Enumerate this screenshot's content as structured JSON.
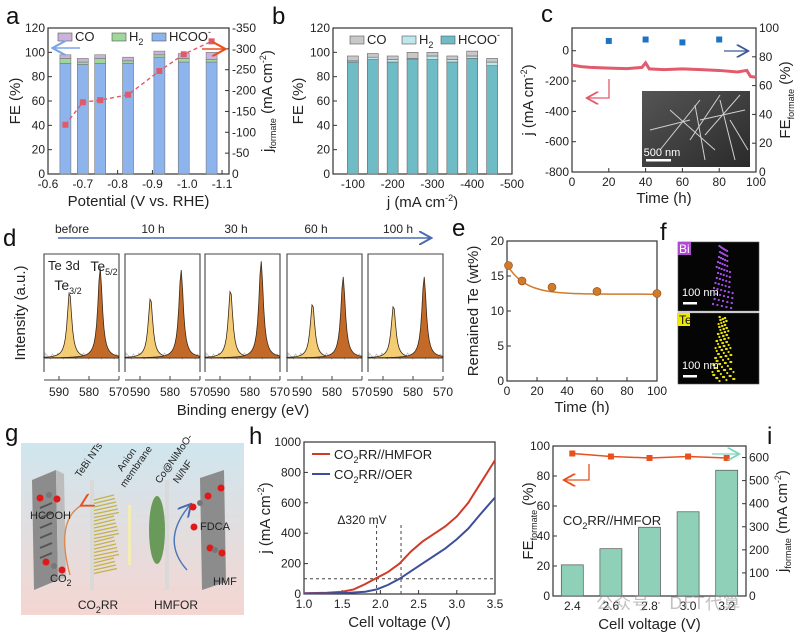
{
  "figure": {
    "watermark": "公众号 · DFT代算",
    "panels_letters": [
      "a",
      "b",
      "c",
      "d",
      "e",
      "f",
      "g",
      "h",
      "i"
    ]
  },
  "chart_data": [
    {
      "id": "a",
      "type": "bar",
      "stacked": true,
      "title": "",
      "xlabel": "Potential (V vs. RHE)",
      "ylabel": "FE (%)",
      "y2label": "j_formate (mA cm-2)",
      "y2label_main": "j",
      "y2label_sub": "formate",
      "y2label_unit": " (mA cm",
      "y2label_sup": "-2",
      "x": [
        -0.65,
        -0.7,
        -0.75,
        -0.83,
        -0.92,
        -0.99,
        -1.07
      ],
      "xlim": [
        -0.6,
        -1.12
      ],
      "xticks": [
        "-0.6",
        "-0.7",
        "-0.8",
        "-0.9",
        "-1.0",
        "-1.1"
      ],
      "xtick_values": [
        -0.6,
        -0.7,
        -0.8,
        -0.9,
        -1.0,
        -1.1
      ],
      "ylim": [
        0,
        120
      ],
      "yticks": [
        "0",
        "20",
        "40",
        "60",
        "80",
        "100",
        "120"
      ],
      "y2lim": [
        0,
        -350
      ],
      "y2ticks": [
        "0",
        "-50",
        "-100",
        "-150",
        "-200",
        "-250",
        "-300",
        "-350"
      ],
      "legend": [
        "CO",
        "H2",
        "HCOO-"
      ],
      "legend_position": "top",
      "colors": {
        "CO": "#c9b3dc",
        "H2": "#9fd89a",
        "HCOO-": "#8db4ec",
        "line": "#e05a6a"
      },
      "series": [
        {
          "name": "HCOO-",
          "values": [
            91,
            90,
            91,
            91,
            96,
            92,
            92
          ]
        },
        {
          "name": "H2",
          "values": [
            4,
            2,
            4,
            2,
            2,
            3,
            2
          ]
        },
        {
          "name": "CO",
          "values": [
            3,
            3,
            3,
            3,
            3,
            4,
            6
          ]
        }
      ],
      "line_series": {
        "name": "j_formate",
        "values": [
          -118,
          -172,
          -177,
          -190,
          -247,
          -287,
          -318
        ]
      }
    },
    {
      "id": "b",
      "type": "bar",
      "stacked": true,
      "xlabel": "j (mA cm-2)",
      "xlabel_main": "j (mA cm",
      "xlabel_sup": "-2",
      "ylabel": "FE (%)",
      "x": [
        -100,
        -150,
        -200,
        -250,
        -300,
        -350,
        -400,
        -450
      ],
      "xlim": [
        -50,
        -500
      ],
      "xticks": [
        "-100",
        "-200",
        "-300",
        "-400",
        "-500"
      ],
      "xtick_values": [
        -100,
        -200,
        -300,
        -400,
        -500
      ],
      "ylim": [
        0,
        120
      ],
      "yticks": [
        "0",
        "20",
        "40",
        "60",
        "80",
        "100",
        "120"
      ],
      "legend": [
        "CO",
        "H2",
        "HCOO-"
      ],
      "legend_position": "top",
      "colors": {
        "CO": "#c8c8c8",
        "H2": "#bfe6ea",
        "HCOO-": "#6fbcc6"
      },
      "series": [
        {
          "name": "HCOO-",
          "values": [
            92,
            94,
            92,
            94,
            94,
            92,
            95,
            89
          ]
        },
        {
          "name": "H2",
          "values": [
            1,
            2,
            2,
            1,
            3,
            2,
            2,
            3
          ]
        },
        {
          "name": "CO",
          "values": [
            4,
            3,
            3,
            5,
            3,
            3,
            4,
            3
          ]
        }
      ]
    },
    {
      "id": "c",
      "type": "line",
      "xlabel": "Time (h)",
      "ylabel": "j (mA cm-2)",
      "ylabel_main": "j (mA cm",
      "ylabel_sup": "-2",
      "y2label_main": "FE",
      "y2label_sub": "formate",
      "y2label_unit": " (%)",
      "xlim": [
        0,
        100
      ],
      "xticks": [
        "0",
        "20",
        "40",
        "60",
        "80",
        "100"
      ],
      "ylim": [
        -800,
        150
      ],
      "yticks": [
        "0",
        "-200",
        "-400",
        "-600",
        "-800"
      ],
      "ytick_values": [
        0,
        -200,
        -400,
        -600,
        -800
      ],
      "y2lim": [
        0,
        100
      ],
      "y2ticks": [
        "0",
        "20",
        "40",
        "60",
        "80",
        "100"
      ],
      "colors": {
        "j": "#e25a6c",
        "fe": "#1f73c4"
      },
      "series": [
        {
          "name": "j",
          "x": [
            0,
            5,
            10,
            20,
            30,
            38,
            40,
            42,
            50,
            60,
            70,
            80,
            90,
            95,
            97,
            100
          ],
          "values": [
            -95,
            -105,
            -110,
            -115,
            -118,
            -110,
            -80,
            -120,
            -125,
            -120,
            -125,
            -130,
            -140,
            -130,
            -170,
            -175
          ]
        },
        {
          "name": "FE_formate",
          "x": [
            20,
            40,
            60,
            80
          ],
          "values": [
            91,
            92,
            90,
            92
          ]
        }
      ],
      "inset_scale_label": "500 nm"
    },
    {
      "id": "d",
      "type": "line",
      "title": "Te 3d",
      "xlabel": "Binding energy (eV)",
      "ylabel": "Intensity (a.u.)",
      "time_labels": [
        "before",
        "10 h",
        "30 h",
        "60 h",
        "100 h"
      ],
      "peak_labels": {
        "p1": "Te",
        "p1_sub": "3/2",
        "p2": "Te",
        "p2_sub": "5/2"
      },
      "xlim": [
        595,
        570
      ],
      "xticks": [
        "590",
        "580",
        "570"
      ],
      "peak_positions_eV": [
        586.5,
        576.3
      ],
      "peak_heights": [
        {
          "label": "before",
          "p32": 0.68,
          "p52": 0.92
        },
        {
          "label": "10 h",
          "p32": 0.62,
          "p52": 0.9
        },
        {
          "label": "30 h",
          "p32": 0.7,
          "p52": 0.99
        },
        {
          "label": "60 h",
          "p32": 0.56,
          "p52": 0.83
        },
        {
          "label": "100 h",
          "p32": 0.54,
          "p52": 0.83
        }
      ],
      "colors": {
        "p32": "#f4cc74",
        "p52": "#c46a28",
        "arrow": "#4a6ab0"
      }
    },
    {
      "id": "e",
      "type": "scatter",
      "xlabel": "Time (h)",
      "ylabel": "Remained Te (wt%)",
      "xlim": [
        0,
        100
      ],
      "xticks": [
        "0",
        "20",
        "40",
        "60",
        "80",
        "100"
      ],
      "ylim": [
        0,
        20
      ],
      "yticks": [
        "0",
        "5",
        "10",
        "15",
        "20"
      ],
      "x": [
        1,
        10,
        30,
        60,
        100
      ],
      "values": [
        16.5,
        14.3,
        13.4,
        12.8,
        12.5
      ],
      "colors": {
        "point": "#d07a2a"
      }
    },
    {
      "id": "f",
      "type": "image",
      "maps": [
        {
          "element": "Bi",
          "scale": "100 nm",
          "color": "#a04ce0"
        },
        {
          "element": "Te",
          "scale": "100 nm",
          "color": "#e8e000"
        }
      ]
    },
    {
      "id": "g",
      "type": "diagram",
      "labels": {
        "cathode": "TeBi NTs",
        "membrane_1": "Anion",
        "membrane_2": "membrane",
        "anode_1": "Co@NiMoO-",
        "anode_2": "Ni/NF",
        "product_left": "HCOOH",
        "reactant_left": "CO",
        "reactant_left_sub": "2",
        "product_right": "FDCA",
        "reactant_right": "HMF",
        "bottom_left": "CO",
        "bottom_left_sub": "2",
        "bottom_left_tail": "RR",
        "bottom_right": "HMFOR"
      }
    },
    {
      "id": "h",
      "type": "line",
      "xlabel": "Cell voltage (V)",
      "ylabel": "j (mA cm-2)",
      "ylabel_main": "j (mA cm",
      "ylabel_sup": "-2",
      "xlim": [
        1.0,
        3.5
      ],
      "xticks": [
        "1.0",
        "1.5",
        "2.0",
        "2.5",
        "3.0",
        "3.5"
      ],
      "ylim": [
        0,
        1000
      ],
      "yticks": [
        "0",
        "200",
        "400",
        "600",
        "800",
        "1000"
      ],
      "annotation": "Δ320 mV",
      "legend_position": "top-left",
      "series": [
        {
          "name": "CO2RR//HMFOR",
          "legend_main": "CO",
          "legend_sub": "2",
          "legend_tail": "RR//HMFOR",
          "color": "#d03a28",
          "x": [
            1.0,
            1.3,
            1.5,
            1.65,
            1.8,
            1.95,
            2.1,
            2.25,
            2.4,
            2.55,
            2.7,
            2.85,
            3.0,
            3.15,
            3.3,
            3.5
          ],
          "values": [
            5,
            8,
            15,
            30,
            65,
            105,
            145,
            200,
            280,
            345,
            395,
            445,
            510,
            600,
            720,
            880
          ]
        },
        {
          "name": "CO2RR//OER",
          "legend_main": "CO",
          "legend_sub": "2",
          "legend_tail": "RR//OER",
          "color": "#3d4f98",
          "x": [
            1.0,
            1.3,
            1.6,
            1.8,
            1.95,
            2.1,
            2.25,
            2.4,
            2.55,
            2.7,
            2.85,
            3.0,
            3.15,
            3.3,
            3.5
          ],
          "values": [
            3,
            5,
            8,
            15,
            30,
            60,
            100,
            150,
            200,
            250,
            300,
            360,
            430,
            520,
            635
          ]
        }
      ],
      "reference_lines": {
        "y": 100,
        "x": [
          1.95,
          2.27
        ]
      }
    },
    {
      "id": "i",
      "type": "bar",
      "xlabel": "Cell voltage (V)",
      "ylabel_main": "FE",
      "ylabel_sub": "formate",
      "ylabel_unit": " (%)",
      "y2label_main": "j",
      "y2label_sub": "formate",
      "y2label_unit": " (mA cm",
      "y2label_sup": "-2",
      "annotation_main": "CO",
      "annotation_sub": "2",
      "annotation_tail": "RR//HMFOR",
      "categories": [
        "2.4",
        "2.6",
        "2.8",
        "3.0",
        "3.2"
      ],
      "ylim": [
        0,
        100
      ],
      "yticks": [
        "0",
        "20",
        "40",
        "60",
        "80",
        "100"
      ],
      "y2lim": [
        0,
        650
      ],
      "y2ticks": [
        "0",
        "100",
        "200",
        "300",
        "400",
        "500",
        "600"
      ],
      "series": [
        {
          "name": "j_formate",
          "axis": "right",
          "values": [
            135,
            205,
            298,
            365,
            545
          ],
          "color": "#8fd1b8"
        },
        {
          "name": "FE_formate",
          "axis": "left",
          "values": [
            95,
            93,
            92,
            93,
            92
          ],
          "color": "#e8501e"
        }
      ]
    }
  ]
}
